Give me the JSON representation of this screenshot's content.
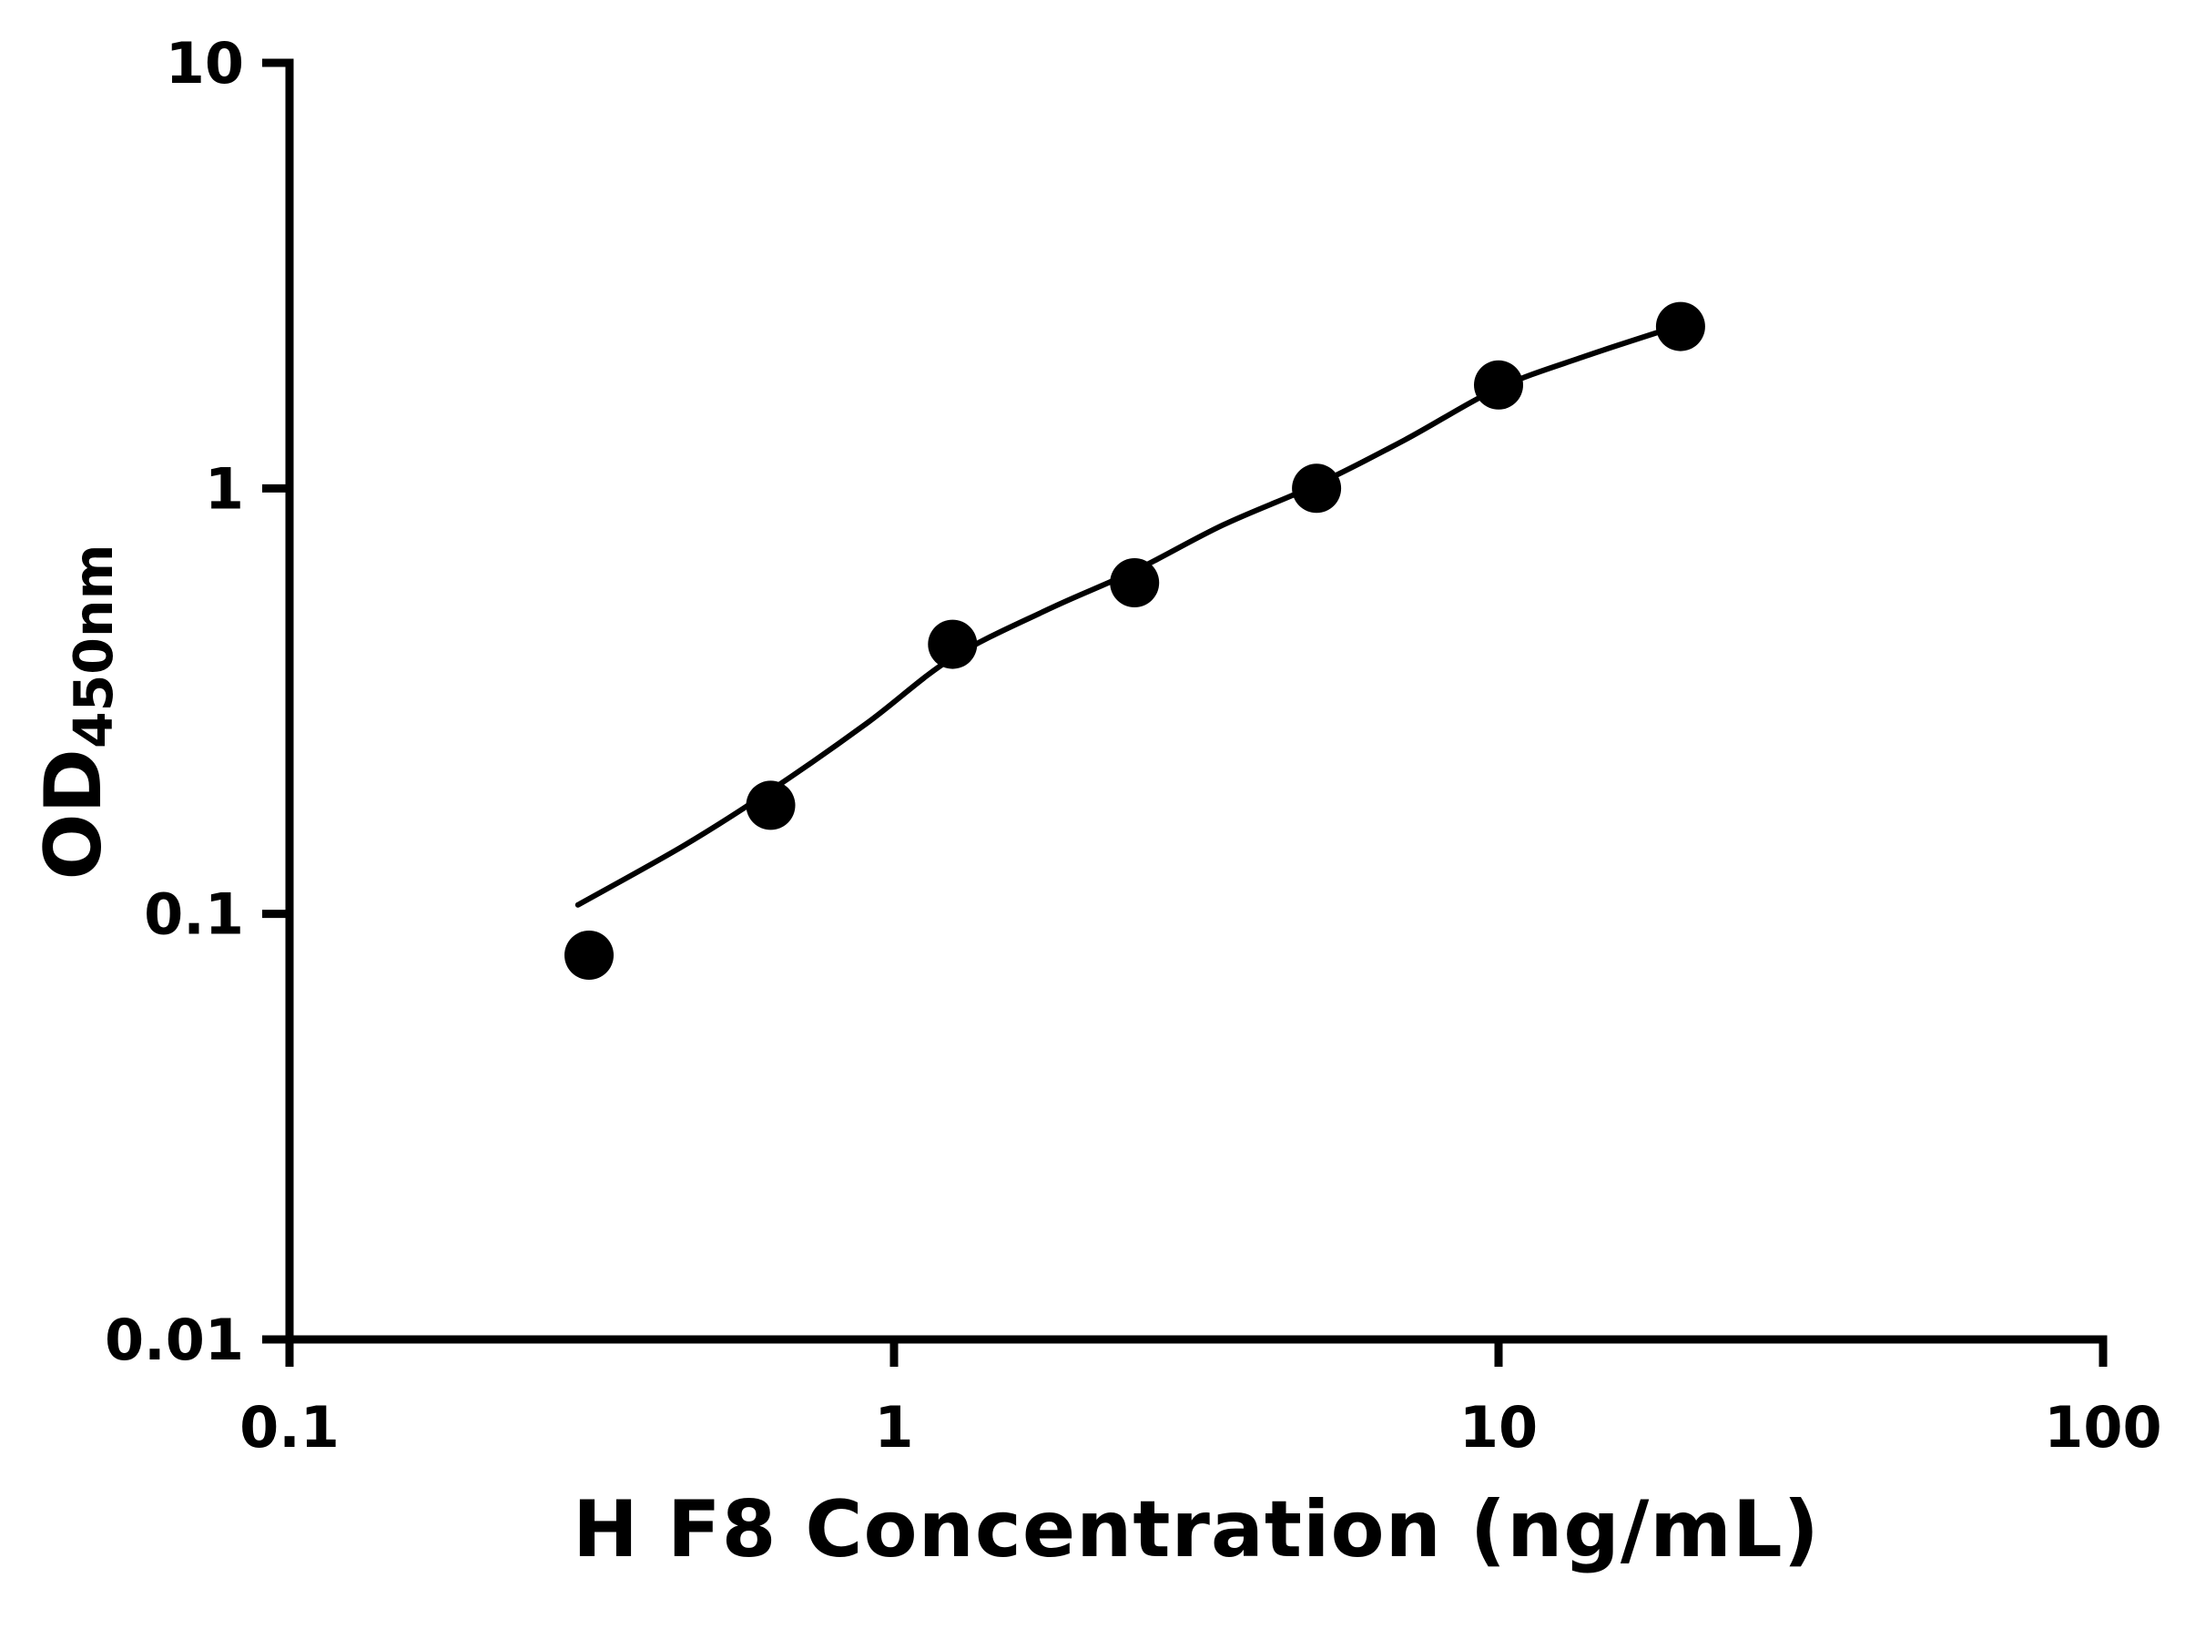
{
  "chart_data": {
    "type": "scatter",
    "title": "",
    "xlabel": "H F8 Concentration (ng/mL)",
    "ylabel_base": "OD",
    "ylabel_sub": "450nm",
    "x_scale": "log",
    "y_scale": "log",
    "xlim": [
      0.1,
      100
    ],
    "ylim": [
      0.01,
      10
    ],
    "x_ticks": [
      0.1,
      1,
      10,
      100
    ],
    "x_tick_labels": [
      "0.1",
      "1",
      "10",
      "100"
    ],
    "y_ticks": [
      0.01,
      0.1,
      1,
      10
    ],
    "y_tick_labels": [
      "0.01",
      "0.1",
      "1",
      "10"
    ],
    "grid": "off",
    "legend": "none",
    "points": [
      {
        "x": 0.313,
        "y": 0.08
      },
      {
        "x": 0.625,
        "y": 0.18
      },
      {
        "x": 1.25,
        "y": 0.43
      },
      {
        "x": 2.5,
        "y": 0.6
      },
      {
        "x": 5,
        "y": 1.0
      },
      {
        "x": 10,
        "y": 1.75
      },
      {
        "x": 20,
        "y": 2.4
      }
    ],
    "fit_curve": [
      {
        "x": 0.3,
        "y": 0.105
      },
      {
        "x": 0.45,
        "y": 0.145
      },
      {
        "x": 0.625,
        "y": 0.195
      },
      {
        "x": 0.9,
        "y": 0.28
      },
      {
        "x": 1.25,
        "y": 0.4
      },
      {
        "x": 1.8,
        "y": 0.52
      },
      {
        "x": 2.5,
        "y": 0.64
      },
      {
        "x": 3.5,
        "y": 0.82
      },
      {
        "x": 5,
        "y": 1.02
      },
      {
        "x": 7,
        "y": 1.3
      },
      {
        "x": 10,
        "y": 1.72
      },
      {
        "x": 14,
        "y": 2.05
      },
      {
        "x": 20,
        "y": 2.42
      }
    ],
    "point_color": "#000000",
    "line_color": "#000000",
    "axis_color": "#000000",
    "background_color": "#ffffff",
    "marker_radius": 27
  }
}
